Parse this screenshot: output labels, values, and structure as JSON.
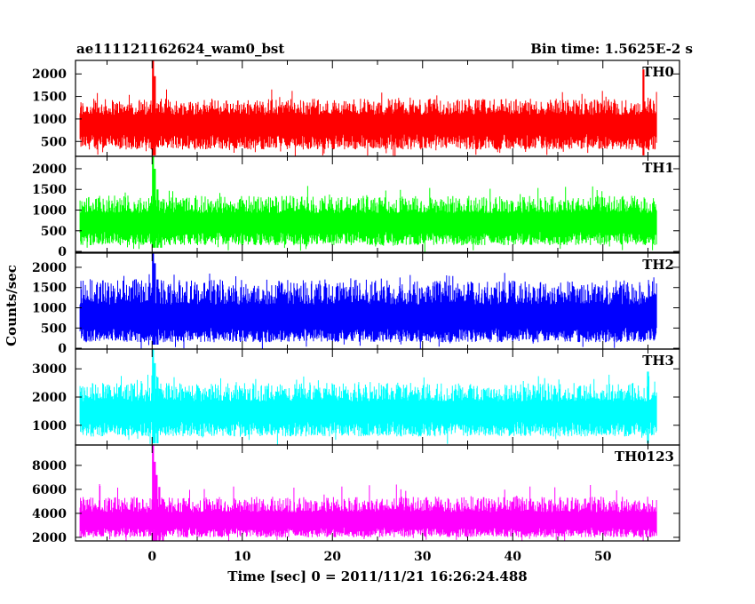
{
  "header": {
    "title_left": "ae111121162624_wam0_bst",
    "title_right": "Bin time: 1.5625E-2 s"
  },
  "chart_data": {
    "type": "line",
    "xlabel": "Time [sec] 0 = 2011/11/21 16:26:24.488",
    "ylabel": "Counts/sec",
    "xlim": [
      -8.5,
      58.5
    ],
    "x_ticks": [
      0,
      10,
      20,
      30,
      40,
      50
    ],
    "x_range_of_data": [
      -8,
      56
    ],
    "panels": [
      {
        "name": "TH0",
        "color": "#ff0000",
        "ylim": [
          170,
          2300
        ],
        "y_ticks": [
          500,
          1000,
          1500,
          2000
        ],
        "baseline": 900,
        "noise_low": 320,
        "noise_high": 1450,
        "spikes": [
          {
            "x": 0.1,
            "y": 2300
          },
          {
            "x": 0.3,
            "y": 1950
          },
          {
            "x": 54.5,
            "y": 2100
          }
        ]
      },
      {
        "name": "TH1",
        "color": "#00ff00",
        "ylim": [
          -20,
          2300
        ],
        "y_ticks": [
          0,
          500,
          1000,
          1500,
          2000
        ],
        "baseline": 700,
        "noise_low": 150,
        "noise_high": 1350,
        "spikes": [
          {
            "x": 0.1,
            "y": 2300
          },
          {
            "x": 0.3,
            "y": 2000
          },
          {
            "x": 0.6,
            "y": 1500
          },
          {
            "x": 1.0,
            "y": 1200
          }
        ]
      },
      {
        "name": "TH2",
        "color": "#0000ff",
        "ylim": [
          -20,
          2350
        ],
        "y_ticks": [
          0,
          500,
          1000,
          1500,
          2000
        ],
        "baseline": 750,
        "noise_low": 150,
        "noise_high": 1700,
        "spikes": [
          {
            "x": 0.1,
            "y": 2350
          },
          {
            "x": 0.3,
            "y": 2100
          },
          {
            "x": 0.6,
            "y": 1700
          }
        ]
      },
      {
        "name": "TH3",
        "color": "#00ffff",
        "ylim": [
          300,
          3700
        ],
        "y_ticks": [
          1000,
          2000,
          3000
        ],
        "baseline": 1500,
        "noise_low": 600,
        "noise_high": 2500,
        "spikes": [
          {
            "x": 0.1,
            "y": 3700
          },
          {
            "x": 0.3,
            "y": 3200
          },
          {
            "x": 0.6,
            "y": 2700
          },
          {
            "x": 55.0,
            "y": 2900
          }
        ]
      },
      {
        "name": "TH0123",
        "color": "#ff00ff",
        "ylim": [
          1700,
          9700
        ],
        "y_ticks": [
          2000,
          4000,
          6000,
          8000
        ],
        "baseline": 3400,
        "noise_low": 2000,
        "noise_high": 5400,
        "spikes": [
          {
            "x": 0.1,
            "y": 9700
          },
          {
            "x": 0.3,
            "y": 8300
          },
          {
            "x": 0.5,
            "y": 7200
          },
          {
            "x": 0.8,
            "y": 6200
          },
          {
            "x": 1.2,
            "y": 5200
          }
        ]
      }
    ]
  }
}
